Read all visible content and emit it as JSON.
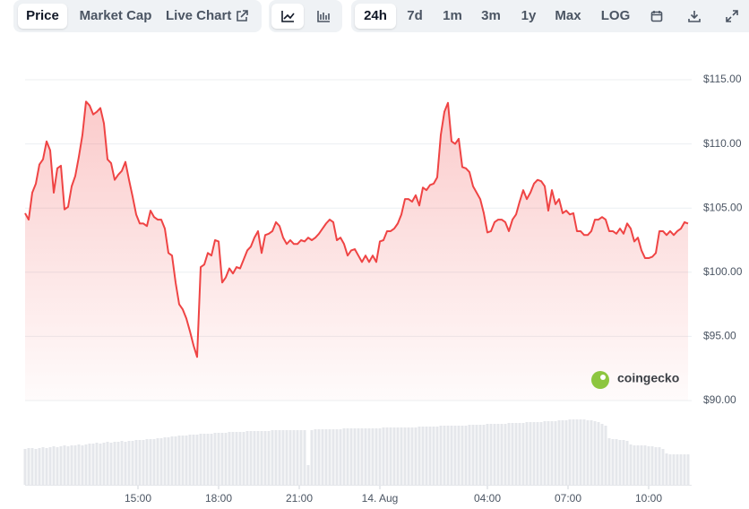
{
  "toolbar": {
    "tabs": [
      "Price",
      "Market Cap",
      "Live Chart"
    ],
    "ranges": [
      "24h",
      "7d",
      "1m",
      "3m",
      "1y",
      "Max",
      "LOG"
    ]
  },
  "chart_data": {
    "type": "line",
    "brand": "coingecko",
    "color": "#ef4444",
    "x": [
      648,
      656,
      664,
      672,
      680,
      688,
      696,
      704,
      712,
      720,
      728,
      736,
      744,
      752,
      760,
      768,
      776,
      784,
      792,
      800,
      808,
      816,
      824,
      832,
      840,
      848,
      856,
      864,
      872,
      880,
      888,
      896,
      904,
      912,
      920,
      928,
      936,
      944,
      952,
      960,
      968,
      976,
      984,
      992,
      1000,
      1008,
      1016,
      1024,
      1032,
      1040,
      1048,
      1056,
      1064,
      1072,
      1080,
      1088,
      1096,
      1104,
      1112,
      1120,
      1128,
      1136,
      1144,
      1152,
      1160,
      1168,
      1176,
      1184,
      1192,
      1200,
      1208,
      1216,
      1224,
      1232,
      1240,
      1248,
      1256,
      1264,
      1272,
      1280,
      1288,
      1296,
      1304,
      1312,
      1320,
      1328,
      1336,
      1344,
      1352,
      1360,
      1368,
      1376,
      1384,
      1392,
      1400,
      1408,
      1416,
      1424,
      1432,
      1440,
      1448,
      1456,
      1464,
      1472,
      1480,
      1488,
      1496,
      1504,
      1512,
      1520,
      1528,
      1536,
      1544,
      1552,
      1560,
      1568,
      1576,
      1584,
      1592,
      1600,
      1608,
      1616,
      1624,
      1632,
      1640,
      1648,
      1656,
      1664,
      1672,
      1680,
      1688,
      1696,
      1704,
      1712,
      1720,
      1728,
      1736,
      1744,
      1752,
      1760,
      1768,
      1776,
      1784,
      1792,
      1800,
      1808,
      1816,
      1824,
      1832,
      1840,
      1848,
      1856,
      1864,
      1872,
      1880,
      1888,
      1896,
      1904,
      1912,
      1920,
      1928,
      1936,
      1944,
      1952,
      1960,
      1968,
      1976,
      1984,
      1992,
      2000,
      2008,
      2016,
      2024,
      2032,
      2040,
      2048,
      2056,
      2064,
      2072,
      2080,
      2088,
      2096,
      2104,
      2112,
      2120,
      2128
    ],
    "values": [
      104.6,
      104.1,
      106.2,
      106.9,
      108.4,
      108.8,
      110.2,
      109.5,
      106.2,
      108.1,
      108.3,
      104.9,
      105.1,
      106.7,
      107.5,
      109.0,
      110.7,
      113.3,
      113.0,
      112.3,
      112.5,
      112.8,
      111.6,
      108.8,
      108.5,
      107.2,
      107.6,
      107.9,
      108.6,
      107.2,
      105.9,
      104.5,
      103.8,
      103.8,
      103.6,
      104.8,
      104.3,
      104.1,
      104.1,
      103.4,
      101.5,
      101.3,
      99.2,
      97.5,
      97.1,
      96.4,
      95.4,
      94.3,
      93.4,
      100.4,
      100.6,
      101.5,
      101.3,
      102.5,
      102.4,
      99.2,
      99.6,
      100.3,
      99.9,
      100.4,
      100.3,
      101.0,
      101.7,
      102.0,
      102.7,
      103.2,
      101.5,
      102.9,
      103.0,
      103.2,
      103.9,
      103.6,
      102.7,
      102.2,
      102.5,
      102.2,
      102.2,
      102.5,
      102.4,
      102.7,
      102.5,
      102.7,
      103.0,
      103.4,
      103.8,
      104.1,
      103.9,
      102.5,
      102.7,
      102.2,
      101.3,
      101.7,
      101.8,
      101.3,
      100.8,
      101.3,
      100.8,
      101.3,
      100.8,
      102.4,
      102.5,
      103.2,
      103.2,
      103.4,
      103.8,
      104.5,
      105.7,
      105.7,
      105.5,
      106.0,
      105.2,
      106.6,
      106.4,
      106.8,
      106.9,
      107.4,
      110.7,
      112.5,
      113.2,
      110.2,
      110.0,
      110.4,
      108.2,
      108.1,
      107.8,
      106.7,
      106.2,
      105.7,
      104.6,
      103.1,
      103.2,
      103.9,
      104.1,
      104.1,
      103.9,
      103.2,
      104.1,
      104.5,
      105.5,
      106.4,
      105.7,
      106.2,
      106.9,
      107.2,
      107.1,
      106.7,
      104.8,
      106.4,
      105.3,
      105.7,
      104.6,
      104.8,
      104.5,
      104.6,
      103.2,
      103.2,
      102.9,
      102.9,
      103.2,
      104.1,
      104.1,
      104.3,
      104.1,
      103.2,
      103.2,
      103.0,
      103.4,
      103.0,
      103.8,
      103.4,
      102.4,
      102.7,
      101.7,
      101.1,
      101.1,
      101.2,
      101.5,
      103.2,
      103.2,
      102.9,
      103.2,
      102.9,
      103.2,
      103.4,
      103.9,
      103.8
    ],
    "xlim": [
      648,
      2128
    ],
    "xticks": [
      {
        "value": 900,
        "label": "15:00"
      },
      {
        "value": 1080,
        "label": "18:00"
      },
      {
        "value": 1260,
        "label": "21:00"
      },
      {
        "value": 1440,
        "label": "14. Aug"
      },
      {
        "value": 1680,
        "label": "04:00"
      },
      {
        "value": 1860,
        "label": "07:00"
      },
      {
        "value": 2040,
        "label": "10:00"
      }
    ],
    "ylim": [
      90,
      115
    ],
    "yticks": [
      {
        "value": 90,
        "label": "$90.00"
      },
      {
        "value": 95,
        "label": "$95.00"
      },
      {
        "value": 100,
        "label": "$100.00"
      },
      {
        "value": 105,
        "label": "$105.00"
      },
      {
        "value": 110,
        "label": "$110.00"
      },
      {
        "value": 115,
        "label": "$115.00"
      }
    ],
    "grid": true,
    "volume": {
      "color": "#e5e7eb",
      "ylim": [
        0,
        100
      ],
      "values": [
        40,
        41,
        41,
        40,
        41,
        42,
        41,
        42,
        43,
        42,
        43,
        44,
        43,
        44,
        44,
        45,
        44,
        45,
        46,
        46,
        47,
        46,
        47,
        48,
        47,
        48,
        48,
        49,
        48,
        49,
        49,
        50,
        50,
        50,
        51,
        51,
        51,
        52,
        52,
        53,
        53,
        54,
        54,
        55,
        55,
        55,
        56,
        56,
        56,
        57,
        57,
        57,
        57,
        58,
        58,
        58,
        58,
        59,
        59,
        59,
        59,
        59,
        60,
        60,
        60,
        60,
        60,
        60,
        60,
        61,
        61,
        61,
        61,
        61,
        61,
        61,
        61,
        61,
        61,
        22,
        61,
        62,
        62,
        62,
        62,
        62,
        62,
        62,
        62,
        63,
        63,
        63,
        63,
        63,
        63,
        63,
        63,
        63,
        63,
        63,
        64,
        64,
        64,
        64,
        64,
        64,
        64,
        64,
        64,
        64,
        65,
        65,
        65,
        65,
        65,
        65,
        66,
        66,
        66,
        66,
        66,
        66,
        66,
        66,
        67,
        67,
        67,
        67,
        67,
        68,
        68,
        68,
        68,
        68,
        68,
        69,
        69,
        69,
        69,
        69,
        70,
        70,
        70,
        70,
        70,
        71,
        71,
        71,
        71,
        72,
        72,
        72,
        73,
        73,
        73,
        73,
        73,
        72,
        72,
        71,
        70,
        68,
        66,
        52,
        51,
        51,
        50,
        50,
        49,
        45,
        44,
        44,
        44,
        44,
        43,
        43,
        42,
        42,
        40,
        35,
        34,
        34,
        34,
        34,
        34,
        34
      ]
    }
  }
}
